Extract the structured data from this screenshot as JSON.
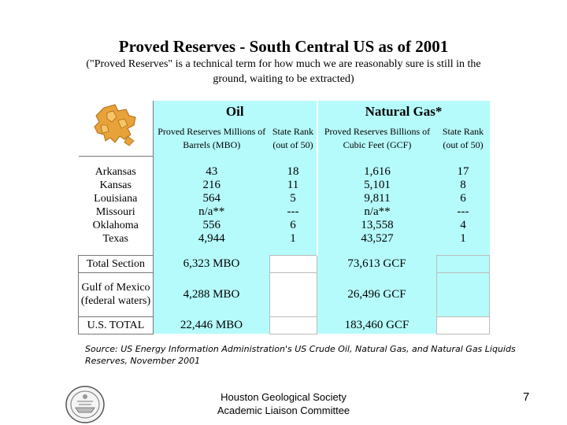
{
  "title": "Proved Reserves - South Central US as of 2001",
  "subtitle": "(\"Proved Reserves\" is a technical term for how much we are reasonably sure is still in the ground, waiting to be extracted)",
  "table": {
    "oil_header": "Oil",
    "gas_header": "Natural Gas*",
    "oil_reserves_header": "Proved Reserves Millions of Barrels (MBO)",
    "oil_rank_header": "State Rank (out of 50)",
    "gas_reserves_header": "Proved Reserves Billions of Cubic Feet (GCF)",
    "gas_rank_header": "State Rank (out of 50)",
    "states": [
      "Arkansas",
      "Kansas",
      "Louisiana",
      "Missouri",
      "Oklahoma",
      "Texas"
    ],
    "oil_reserves": [
      "43",
      "216",
      "564",
      "n/a**",
      "556",
      "4,944"
    ],
    "oil_rank": [
      "18",
      "11",
      "5",
      "---",
      "6",
      "1"
    ],
    "gas_reserves": [
      "1,616",
      "5,101",
      "9,811",
      "n/a**",
      "13,558",
      "43,527"
    ],
    "gas_rank": [
      "17",
      "8",
      "6",
      "---",
      "4",
      "1"
    ],
    "total_section_label": "Total Section",
    "total_section_oil": "6,323 MBO",
    "total_section_gas": "73,613 GCF",
    "gulf_label": "Gulf of Mexico (federal waters)",
    "gulf_oil": "4,288 MBO",
    "gulf_gas": "26,496 GCF",
    "us_total_label": "U.S. TOTAL",
    "us_total_oil": "22,446 MBO",
    "us_total_gas": "183,460 GCF"
  },
  "source": "Source: US Energy Information Administration's US Crude Oil, Natural Gas, and Natural Gas Liquids Reserves, November 2001",
  "footer": {
    "line1": "Houston Geological Society",
    "line2": "Academic Liaison Committee"
  },
  "page_number": "7",
  "colors": {
    "cell_background": "#b6fbfb",
    "map_fill": "#e8a23a"
  },
  "icons": {
    "map": "south-central-us-map-icon",
    "seal": "hgs-seal-icon"
  }
}
